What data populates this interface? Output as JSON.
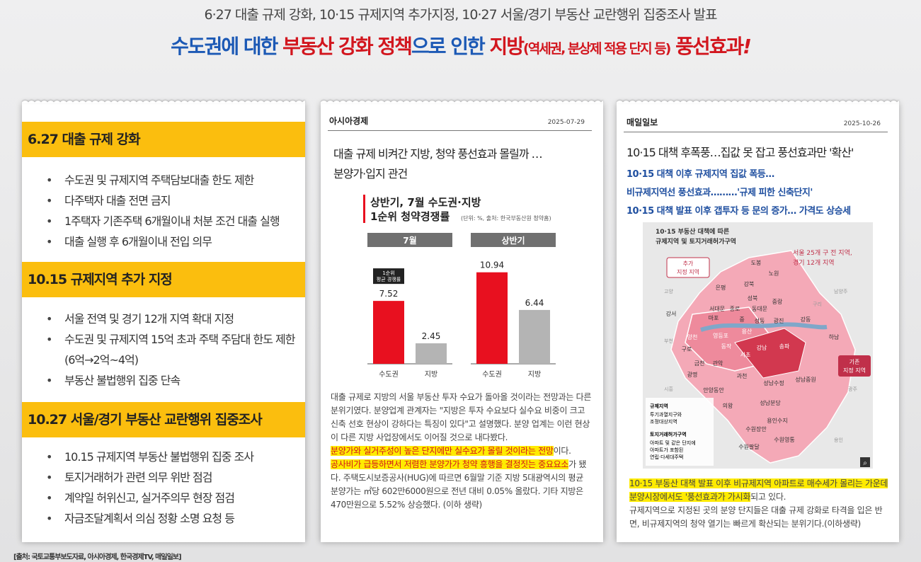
{
  "header": {
    "subtitle": "6·27 대출 규제 강화, 10·15 규제지역 추가지정, 10·27 서울/경기 부동산 교란행위 집중조사 발표",
    "h1": "수도권에 대한 ",
    "h2": "부동산 강화 정책",
    "h3": "으로 인한 ",
    "h4": "지방",
    "h5": "(역세권, 분상제 적용 단지 등)",
    "h6": " 풍선효과",
    "h7": "!"
  },
  "left": {
    "sections": [
      {
        "title": "6.27 대출 규제 강화",
        "items": [
          "수도권 및 규제지역 주택담보대출 한도 제한",
          "다주택자 대출 전면 금지",
          "1주택자 기존주택 6개월이내 처분 조건 대출 실행",
          "대출 실행 후 6개월이내 전입 의무"
        ]
      },
      {
        "title": "10.15 규제지역 추가 지정",
        "items": [
          "서울 전역 및 경기 12개 지역 확대 지정",
          "수도권 및 규제지역 15억 초과 주택 주담대 한도 제한 (6억→2억~4억)",
          "부동산 불법행위 집중 단속"
        ]
      },
      {
        "title": "10.27 서울/경기 부동산 교란행위 집중조사",
        "items": [
          "10.15 규제지역 부동산 불법행위 집중 조사",
          "토지거래허가 관련 의무 위반 점검",
          "계약일 허위신고, 실거주의무 현장 점검",
          "자금조달계획서 의심 정황 소명 요청 등"
        ]
      }
    ]
  },
  "middle": {
    "outlet": "아시아경제",
    "date": "2025-07-29",
    "headline1": "대출 규제 비켜간 지방, 청약 풍선효과 몰릴까 …",
    "headline2": "분양가·입지 관건",
    "chart_title1": "상반기, 7월 수도권·지방",
    "chart_title2": "1순위 청약경쟁률",
    "chart_note": "(단위: %, 출처: 한국부동산원 청약홈)",
    "badge": "1순위\n평균 경쟁률",
    "p1": "대출 규제로 지방의 서울 부동산 투자 수요가 돌아올 것이라는 전망과는 다른 분위기였다. 분양업계 관계자는 \"지방은 투자 수요보다 실수요 비중이 크고 신축 선호 현상이 강하다는 특징이 있다\"고 설명했다. 분양 업계는 이런 현상이 다른 지방 사업장에서도 이어질 것으로 내다봤다.",
    "hl1": "분양가와 실거주성이 높은 단지에만 실수요가 몰릴 것이라는 전망",
    "t1": "이다.",
    "hl2": "공사비가 급등하면서 저렴한 분양가가 청약 흥행을 결정짓는 중요요소",
    "t2": "가 됐다. 주택도시보증공사(HUG)에 따르면 6월말 기준 지방 5대광역시의 평균 분양가는 ㎡당 602만6000원으로 전년 대비 0.05% 올랐다. 기타 지방은 470만원으로 5.52% 상승했다. (이하 생략)"
  },
  "chart_data": {
    "type": "bar",
    "title": "상반기, 7월 수도권·지방 1순위 청약경쟁률",
    "panels": [
      {
        "name": "7월",
        "categories": [
          "수도권",
          "지방"
        ],
        "values": [
          7.52,
          2.45
        ]
      },
      {
        "name": "상반기",
        "categories": [
          "수도권",
          "지방"
        ],
        "values": [
          10.94,
          6.44
        ]
      }
    ],
    "colors": [
      "#e8101f",
      "#b4b4b4"
    ],
    "ylim": [
      0,
      12
    ]
  },
  "right": {
    "outlet": "매일일보",
    "date": "2025-10-26",
    "headline": "10·15 대책 후폭풍…집값 못 잡고 풍선효과만 '확산'",
    "subs": [
      "10·15 대책 이후 규제지역 집값 폭등…",
      "비규제지역선 풍선효과………'규제 피한 신축단지'",
      "10·15 대책 발표 이후 갭투자 등 문의 증가… 가격도 상승세"
    ],
    "map_title1": "10·15 부동산 대책에 따른",
    "map_title2": "규제지역 및 토지거래허가구역",
    "map_note1": "서울 25개 구 전 지역,",
    "map_note2": "경기 12개 지역",
    "tag_new": "추가\n지정 지역",
    "tag_old": "기존\n지정 지역",
    "legend": {
      "a": "규제지역",
      "b": "투기과열지구와",
      "c": "조정대상지역",
      "d": "토지거래허가구역",
      "e": "아파트 및 같은 단지에",
      "f": "아파트가 포함된",
      "g": "연립·다세대주택"
    },
    "districts": [
      "도봉",
      "노원",
      "강북",
      "은평",
      "성북",
      "중랑",
      "서대문",
      "종로",
      "동대문",
      "마포",
      "중",
      "성동",
      "광진",
      "강동",
      "강서",
      "용산",
      "양천",
      "영등포",
      "동작",
      "송파",
      "강남",
      "서초",
      "구로",
      "금천",
      "관악",
      "과천",
      "하남",
      "광명",
      "성남중원",
      "성남수정",
      "안양동안",
      "의왕",
      "성남분당",
      "용인수지",
      "수원장안",
      "수원영통",
      "수원팔달"
    ],
    "gray": [
      "고양",
      "남양주",
      "구리",
      "부천",
      "시흥",
      "광주",
      "용인"
    ],
    "hl": "10·15 부동산 대책 발표 이후 비규제지역 아파트로 매수세가 몰리는 가운데 분양시장에서도 '풍선효과가 가시화",
    "t": "되고 있다.",
    "p2": "규제지역으로 지정된 곳의 분양 단지들은 대출 규제 강화로 타격을 입은 반면, 비규제지역의 청약 열기는 빠르게 확산되는 분위기다.(이하생략)"
  },
  "footer": "[출처: 국토교통부보도자료, 아시아경제, 한국경제TV, 매일일보]"
}
